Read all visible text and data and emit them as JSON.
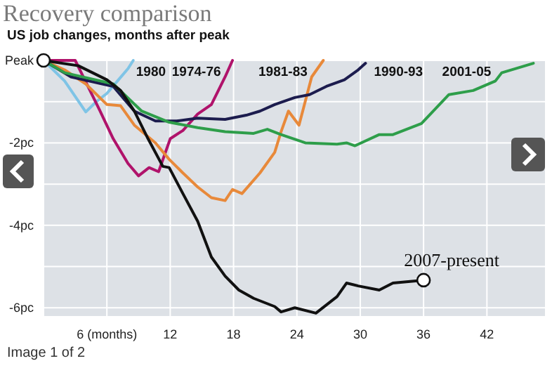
{
  "chart_data": {
    "type": "line",
    "title": "Recovery comparison",
    "subtitle": "US job changes, months after peak",
    "annotations": [
      "Image 1 of 2"
    ],
    "xlim": [
      0,
      47.5
    ],
    "xticks": [
      {
        "value": 0,
        "label": null
      },
      {
        "value": 6,
        "label": "6 (months)"
      },
      12,
      18,
      24,
      30,
      36,
      42
    ],
    "ylim": [
      -6.2,
      0
    ],
    "yticks": [
      {
        "value": 0,
        "label": "Peak"
      },
      {
        "value": -1,
        "label": null
      },
      {
        "value": -2,
        "label": "-2pc"
      },
      {
        "value": -3,
        "label": null
      },
      {
        "value": -4,
        "label": "-4pc"
      },
      {
        "value": -5,
        "label": null
      },
      {
        "value": -6,
        "label": "-6pc"
      }
    ],
    "grid": true,
    "series": [
      {
        "name": "1980",
        "color": "#7fc4e6",
        "x": [
          0,
          2,
          4,
          5,
          6,
          7,
          8,
          8.5
        ],
        "values": [
          0,
          -0.5,
          -1.25,
          -1.0,
          -0.8,
          -0.5,
          -0.2,
          0
        ]
      },
      {
        "name": "1974-76",
        "color": "#b0136b",
        "x": [
          0,
          3,
          5.3,
          6.6,
          8,
          9,
          10,
          10.9,
          12,
          13.2,
          14.6,
          15.9,
          17.2,
          17.9
        ],
        "values": [
          0,
          0,
          -1.2,
          -1.9,
          -2.5,
          -2.8,
          -2.6,
          -2.7,
          -1.9,
          -1.7,
          -1.3,
          -1.07,
          -0.4,
          0
        ]
      },
      {
        "name": "1981-83",
        "color": "#e8893a",
        "x": [
          0,
          2,
          4,
          6,
          7.3,
          8.6,
          10.6,
          11.9,
          13.2,
          14.6,
          15.9,
          17.2,
          17.9,
          18.8,
          20.5,
          21.9,
          22.5,
          23.2,
          24.2,
          25.4,
          26.5
        ],
        "values": [
          0,
          -0.23,
          -0.57,
          -1.07,
          -1.1,
          -1.57,
          -2.0,
          -2.4,
          -2.73,
          -3.07,
          -3.33,
          -3.4,
          -3.13,
          -3.23,
          -2.73,
          -2.23,
          -1.73,
          -1.23,
          -1.57,
          -0.4,
          0
        ]
      },
      {
        "name": "1990-93",
        "color": "#1c1c4e",
        "x": [
          0,
          2.6,
          6.6,
          8.6,
          10.6,
          12.6,
          14.6,
          17.2,
          19.2,
          20.5,
          21.9,
          23.8,
          25.2,
          26.8,
          28.5,
          29.8,
          30.5
        ],
        "values": [
          0,
          -0.4,
          -0.63,
          -1.23,
          -1.47,
          -1.47,
          -1.4,
          -1.43,
          -1.33,
          -1.23,
          -1.07,
          -0.9,
          -0.83,
          -0.63,
          -0.47,
          -0.23,
          -0.07
        ]
      },
      {
        "name": "2001-05",
        "color": "#2e9e4a",
        "x": [
          0,
          2,
          6.6,
          9.3,
          11.9,
          14.6,
          17.2,
          19.9,
          21.2,
          22.5,
          24.8,
          27.8,
          28.7,
          29.5,
          31.8,
          33.1,
          35.8,
          38.4,
          40.7,
          42.8,
          43.4,
          46.4
        ],
        "values": [
          0,
          -0.3,
          -0.57,
          -1.23,
          -1.5,
          -1.63,
          -1.73,
          -1.77,
          -1.67,
          -1.8,
          -2.0,
          -2.03,
          -2.0,
          -2.07,
          -1.8,
          -1.8,
          -1.53,
          -0.83,
          -0.73,
          -0.5,
          -0.3,
          -0.07
        ]
      },
      {
        "name": "2007-present",
        "color": "#111111",
        "x": [
          0,
          3.3,
          6,
          7.3,
          8.6,
          9.9,
          11.3,
          11.9,
          13.2,
          14.6,
          15.9,
          17.2,
          18.5,
          19.9,
          21.9,
          22.5,
          23.8,
          25.8,
          27.8,
          28.7,
          29.8,
          31.8,
          33.1,
          36
        ],
        "values": [
          0,
          -0.13,
          -0.47,
          -0.73,
          -1.23,
          -1.9,
          -2.57,
          -2.6,
          -3.23,
          -3.9,
          -4.77,
          -5.23,
          -5.57,
          -5.77,
          -5.97,
          -6.1,
          -6.0,
          -6.13,
          -5.73,
          -5.4,
          -5.47,
          -5.57,
          -5.4,
          -5.33
        ]
      }
    ]
  }
}
